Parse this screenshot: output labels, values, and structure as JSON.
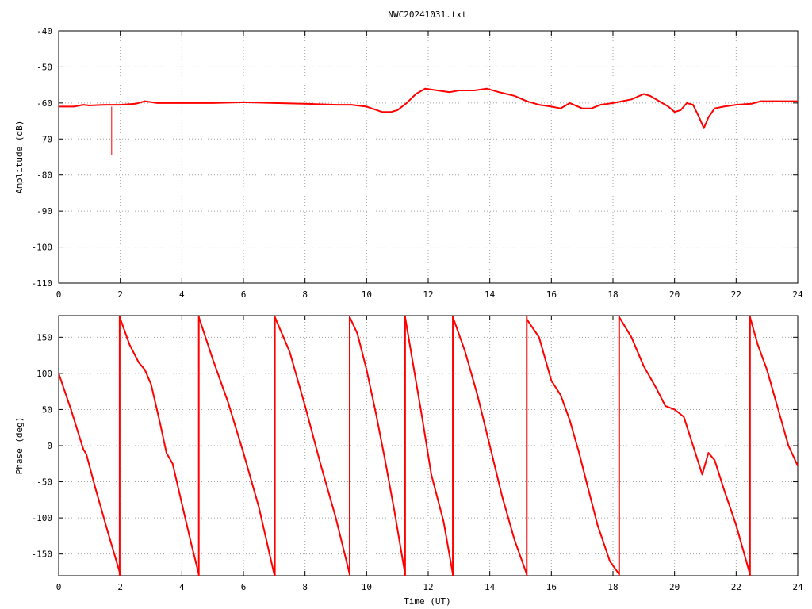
{
  "title": "NWC20241031.txt",
  "colors": {
    "series": "#ff0000",
    "axis": "#000000",
    "grid": "#a0a0a0",
    "background": "#ffffff"
  },
  "chart_data": [
    {
      "type": "line",
      "title": "NWC20241031.txt",
      "xlabel": "",
      "ylabel": "Amplitude (dB)",
      "xlim": [
        0,
        24
      ],
      "ylim": [
        -110,
        -40
      ],
      "x_ticks": [
        0,
        2,
        4,
        6,
        8,
        10,
        12,
        14,
        16,
        18,
        20,
        22,
        24
      ],
      "y_ticks": [
        -110,
        -100,
        -90,
        -80,
        -70,
        -60,
        -50,
        -40
      ],
      "grid": true,
      "grid_style": "dotted",
      "legend": "none",
      "series": [
        {
          "color": "#ff0000",
          "x": [
            0,
            0.5,
            0.8,
            1.0,
            1.5,
            2.0,
            2.5,
            2.8,
            3.2,
            4.0,
            5.0,
            6.0,
            7.0,
            8.0,
            9.0,
            9.5,
            10.0,
            10.5,
            10.8,
            11.0,
            11.3,
            11.6,
            11.9,
            12.3,
            12.7,
            13.0,
            13.5,
            13.9,
            14.3,
            14.8,
            15.2,
            15.6,
            16.0,
            16.3,
            16.6,
            17.0,
            17.3,
            17.6,
            18.0,
            18.3,
            18.6,
            19.0,
            19.2,
            19.5,
            19.8,
            20.0,
            20.2,
            20.4,
            20.6,
            20.8,
            20.95,
            21.1,
            21.3,
            21.6,
            22.0,
            22.5,
            22.8,
            23.2,
            24.0
          ],
          "y": [
            -61,
            -61,
            -60.5,
            -60.7,
            -60.5,
            -60.5,
            -60.2,
            -59.5,
            -60,
            -60,
            -60,
            -59.8,
            -60,
            -60.2,
            -60.5,
            -60.5,
            -61,
            -62.5,
            -62.5,
            -62,
            -60,
            -57.5,
            -56,
            -56.5,
            -57,
            -56.5,
            -56.5,
            -56,
            -57,
            -58,
            -59.5,
            -60.5,
            -61,
            -61.5,
            -60,
            -61.5,
            -61.5,
            -60.5,
            -60,
            -59.5,
            -59,
            -57.5,
            -58,
            -59.5,
            -61,
            -62.5,
            -62,
            -60,
            -60.5,
            -64,
            -67,
            -64,
            -61.5,
            -61,
            -60.5,
            -60.2,
            -59.5,
            -59.5,
            -59.5
          ]
        }
      ],
      "spikes": [
        {
          "x": 1.72,
          "y_low": -74.5,
          "y_high": -61
        }
      ]
    },
    {
      "type": "line",
      "xlabel": "Time (UT)",
      "ylabel": "Phase (deg)",
      "xlim": [
        0,
        24
      ],
      "ylim": [
        -180,
        180
      ],
      "x_ticks": [
        0,
        2,
        4,
        6,
        8,
        10,
        12,
        14,
        16,
        18,
        20,
        22,
        24
      ],
      "y_ticks": [
        -150,
        -100,
        -50,
        0,
        50,
        100,
        150
      ],
      "grid": true,
      "grid_style": "dotted",
      "legend": "none",
      "series": [
        {
          "color": "#ff0000",
          "segments": [
            {
              "x": [
                0,
                0.4,
                0.8,
                0.9,
                1.2,
                1.6,
                2.0
              ],
              "y": [
                100,
                50,
                -5,
                -12,
                -60,
                -120,
                -178
              ]
            },
            {
              "x": [
                1.98,
                2.3,
                2.6,
                2.8,
                3.0,
                3.3,
                3.5,
                3.7,
                4.0,
                4.3,
                4.55
              ],
              "y": [
                178,
                140,
                115,
                105,
                85,
                30,
                -10,
                -25,
                -80,
                -135,
                -178
              ]
            },
            {
              "x": [
                4.55,
                5.0,
                5.5,
                6.0,
                6.5,
                7.0
              ],
              "y": [
                178,
                120,
                60,
                -10,
                -85,
                -178
              ]
            },
            {
              "x": [
                7.02,
                7.5,
                8.0,
                8.5,
                9.0,
                9.45
              ],
              "y": [
                178,
                130,
                55,
                -25,
                -100,
                -178
              ]
            },
            {
              "x": [
                9.45,
                9.7,
                10.0,
                10.3,
                10.6,
                10.9,
                11.25
              ],
              "y": [
                178,
                155,
                105,
                45,
                -20,
                -90,
                -178
              ]
            },
            {
              "x": [
                11.25,
                11.5,
                11.8,
                12.1,
                12.5,
                12.8
              ],
              "y": [
                178,
                115,
                40,
                -40,
                -105,
                -178
              ]
            },
            {
              "x": [
                12.8,
                13.2,
                13.6,
                14.0,
                14.4,
                14.8,
                15.2
              ],
              "y": [
                178,
                130,
                70,
                0,
                -70,
                -130,
                -178
              ]
            },
            {
              "x": [
                15.2,
                15.6,
                16.0,
                16.3,
                16.6,
                16.9,
                17.2,
                17.5,
                17.9,
                18.2
              ],
              "y": [
                175,
                150,
                90,
                70,
                35,
                -10,
                -60,
                -110,
                -160,
                -178
              ]
            },
            {
              "x": [
                18.2,
                18.6,
                19.0,
                19.4,
                19.7,
                20.0,
                20.3,
                20.6,
                20.9,
                21.0,
                21.1,
                21.3,
                21.6,
                22.0,
                22.45
              ],
              "y": [
                178,
                150,
                110,
                80,
                55,
                50,
                40,
                0,
                -40,
                -25,
                -10,
                -20,
                -60,
                -110,
                -178
              ]
            },
            {
              "x": [
                22.45,
                22.7,
                23.0,
                23.4,
                23.7,
                24.0
              ],
              "y": [
                178,
                140,
                105,
                45,
                0,
                -28
              ]
            }
          ]
        }
      ],
      "wraps": [
        1.98,
        4.55,
        7.02,
        9.45,
        11.25,
        12.8,
        15.2,
        18.2,
        22.45
      ]
    }
  ]
}
